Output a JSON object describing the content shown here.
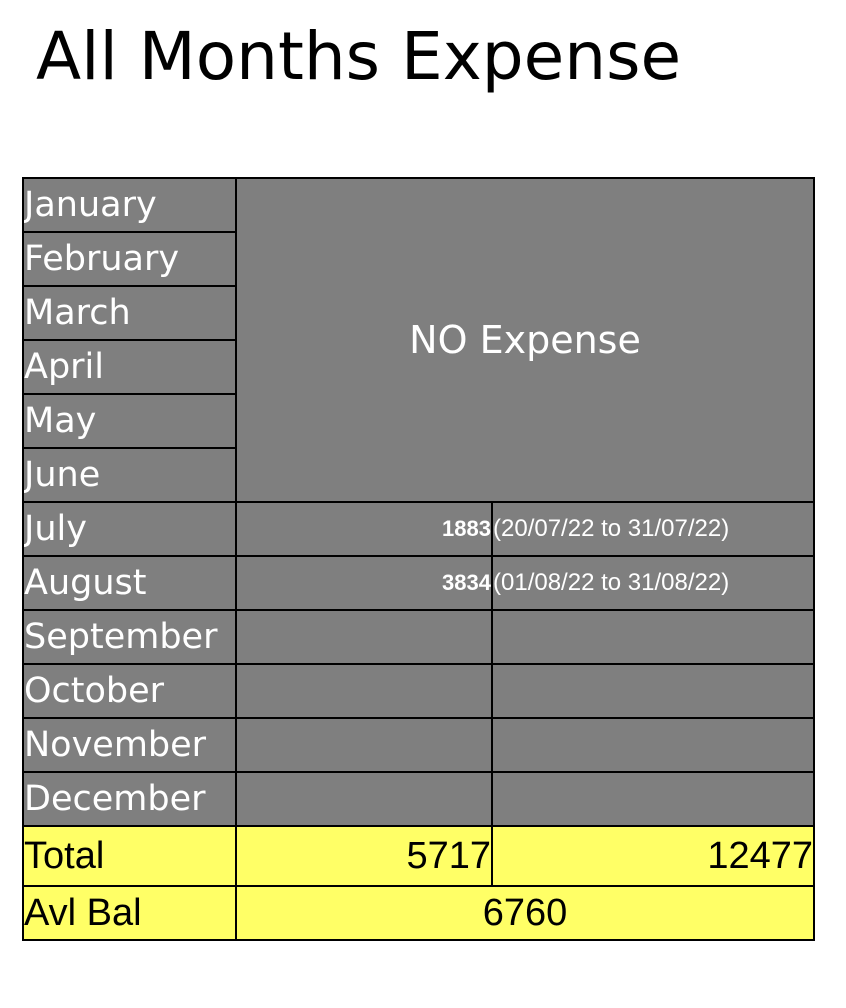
{
  "title": "All Months Expense",
  "months": [
    "January",
    "February",
    "March",
    "April",
    "May",
    "June",
    "July",
    "August",
    "September",
    "October",
    "November",
    "December"
  ],
  "no_expense_label": "NO Expense",
  "entries": [
    {
      "month": "July",
      "amount": "1883",
      "period": "(20/07/22 to 31/07/22)"
    },
    {
      "month": "August",
      "amount": "3834",
      "period": "(01/08/22 to 31/08/22)"
    }
  ],
  "total": {
    "label": "Total",
    "value1": "5717",
    "value2": "12477"
  },
  "balance": {
    "label": "Avl Bal",
    "value": "6760"
  },
  "colors": {
    "grey_fill": "#7f7f7f",
    "yellow_fill": "#ffff66",
    "border": "#000000"
  }
}
